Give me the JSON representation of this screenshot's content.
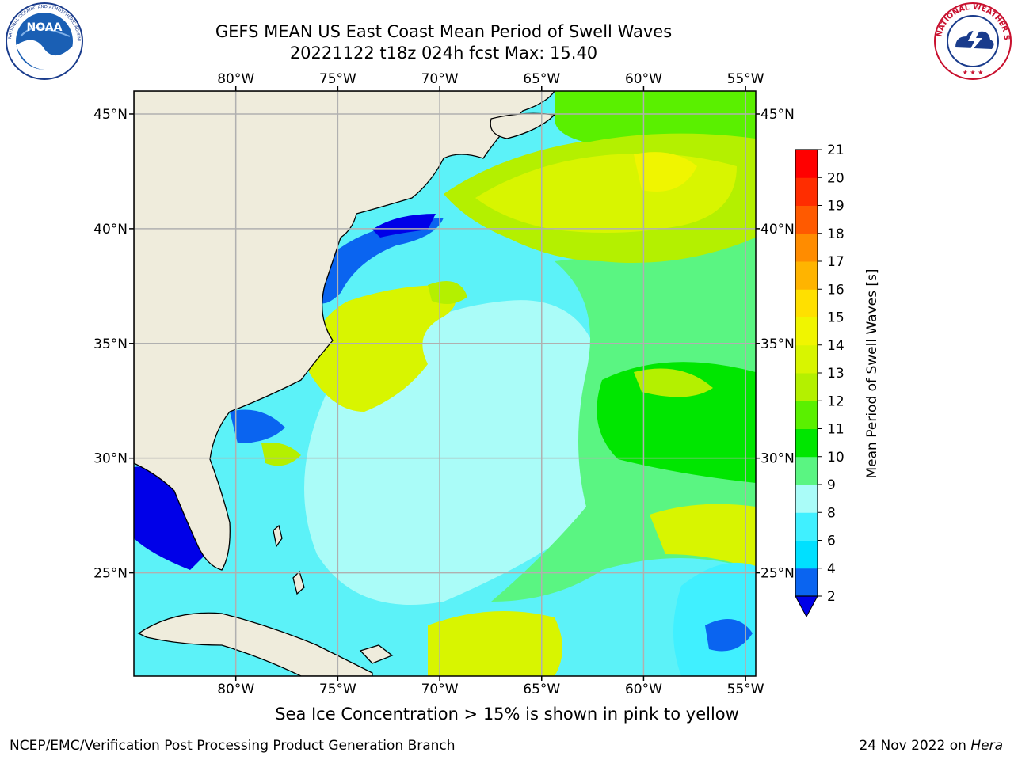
{
  "header": {
    "title_line1": "GEFS MEAN US East Coast Mean Period of Swell Waves",
    "title_line2": "20221122 t18z 024h fcst   Max: 15.40",
    "left_logo": {
      "icon": "noaa-logo",
      "text": "NOAA",
      "ring_text": "NATIONAL OCEANIC AND ATMOSPHERIC ADMINISTRATION · U.S. DEPARTMENT OF COMMERCE"
    },
    "right_logo": {
      "icon": "nws-logo",
      "ring_text": "NATIONAL WEATHER SERVICE"
    }
  },
  "map": {
    "lon_labels": [
      "80°W",
      "75°W",
      "70°W",
      "65°W",
      "60°W",
      "55°W"
    ],
    "lat_labels": [
      "45°N",
      "40°N",
      "35°N",
      "30°N",
      "25°N"
    ],
    "lon_values": [
      -80,
      -75,
      -70,
      -65,
      -60,
      -55
    ],
    "lat_values": [
      45,
      40,
      35,
      30,
      25
    ],
    "extent": {
      "lon_min": -85,
      "lon_max": -54.5,
      "lat_min": 20.5,
      "lat_max": 46
    },
    "land_color": "#efecdc",
    "grid_color": "#b0b0b0"
  },
  "colorbar": {
    "label": "Mean Period of Swell Waves [s]",
    "ticks": [
      "2",
      "4",
      "6",
      "8",
      "9",
      "10",
      "11",
      "12",
      "13",
      "14",
      "15",
      "16",
      "17",
      "18",
      "19",
      "20",
      "21"
    ],
    "colors": [
      "#0a64f0",
      "#00e0ff",
      "#40f0ff",
      "#aafcf8",
      "#5af582",
      "#00e600",
      "#5af000",
      "#b4f000",
      "#d8f500",
      "#f0f500",
      "#ffe000",
      "#ffb400",
      "#ff8c00",
      "#ff5a00",
      "#ff2d00",
      "#ff0000"
    ],
    "under_color": "#0000e8"
  },
  "footer": {
    "note": "Sea Ice Concentration > 15% is shown in pink to yellow",
    "left": "NCEP/EMC/Verification Post Processing Product Generation Branch",
    "right_date": "24 Nov 2022 on",
    "right_host": "Hera"
  }
}
